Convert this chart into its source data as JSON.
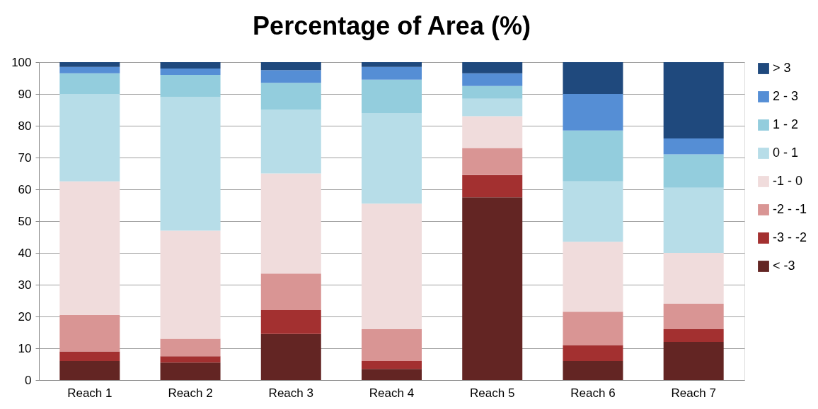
{
  "chart_data": {
    "type": "bar",
    "title": "Percentage of Area (%)",
    "stacked": true,
    "categories": [
      "Reach 1",
      "Reach 2",
      "Reach 3",
      "Reach 4",
      "Reach 5",
      "Reach 6",
      "Reach 7"
    ],
    "series": [
      {
        "name": "< -3",
        "color": "#632523",
        "values": [
          6,
          5.5,
          14.5,
          3.5,
          57.5,
          6,
          12
        ]
      },
      {
        "name": "-3 - -2",
        "color": "#a33030",
        "values": [
          3,
          2,
          7.5,
          2.5,
          7,
          5,
          4
        ]
      },
      {
        "name": "-2 - -1",
        "color": "#d99594",
        "values": [
          11.5,
          5.5,
          11.5,
          10,
          8.5,
          10.5,
          8
        ]
      },
      {
        "name": "-1 - 0",
        "color": "#f0dcdc",
        "values": [
          42,
          34,
          31.5,
          39.5,
          10,
          22,
          16
        ]
      },
      {
        "name": "0 - 1",
        "color": "#b7dde8",
        "values": [
          27.5,
          42,
          20,
          28.5,
          5.5,
          19,
          20.5
        ]
      },
      {
        "name": "1 - 2",
        "color": "#93cddd",
        "values": [
          6.5,
          7,
          8.5,
          10.5,
          4,
          16,
          10.5
        ]
      },
      {
        "name": "2 - 3",
        "color": "#558ed5",
        "values": [
          2,
          2,
          4,
          4,
          4,
          11.5,
          5
        ]
      },
      {
        "name": "> 3",
        "color": "#1f497d",
        "values": [
          1.5,
          2,
          2.5,
          1.5,
          3.5,
          10,
          24
        ]
      }
    ],
    "ylim": [
      0,
      100
    ],
    "yticks": [
      0,
      10,
      20,
      30,
      40,
      50,
      60,
      70,
      80,
      90,
      100
    ],
    "grid": "y",
    "legend": "right"
  }
}
